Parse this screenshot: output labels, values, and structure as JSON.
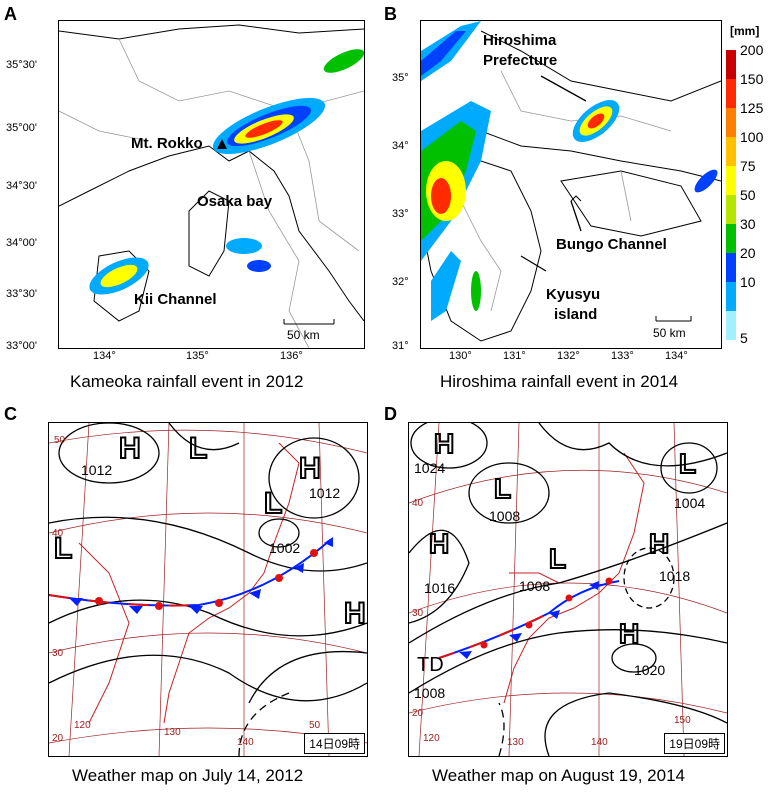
{
  "panels": {
    "A": {
      "letter": "A",
      "caption": "Kameoka rainfall event in 2012",
      "y_ticks": [
        "35°30'",
        "35°00'",
        "34°30'",
        "34°00'",
        "33°30'",
        "33°00'"
      ],
      "x_ticks": [
        "134°",
        "135°",
        "136°"
      ],
      "labels": {
        "rokko": "Mt. Rokko",
        "osaka": "Osaka bay",
        "kii": "Kii Channel"
      },
      "scale": "50 km"
    },
    "B": {
      "letter": "B",
      "caption": "Hiroshima rainfall event in 2014",
      "y_ticks": [
        "35°",
        "34°",
        "33°",
        "32°",
        "31°"
      ],
      "x_ticks": [
        "130°",
        "131°",
        "132°",
        "133°",
        "134°"
      ],
      "labels": {
        "hiroshima_1": "Hiroshima",
        "hiroshima_2": "Prefecture",
        "bungo": "Bungo Channel",
        "kyusyu_1": "Kyusyu",
        "kyusyu_2": "island"
      },
      "scale": "50 km"
    },
    "C": {
      "letter": "C",
      "caption": "Weather map on July 14, 2012",
      "stamp": "14日09時",
      "pressures": [
        "1012",
        "1012",
        "1002"
      ],
      "lat_labels": [
        "50",
        "40",
        "30",
        "20"
      ],
      "lon_labels": [
        "120",
        "130",
        "140",
        "50"
      ]
    },
    "D": {
      "letter": "D",
      "caption": "Weather map on August 19, 2014",
      "stamp": "19日09時",
      "pressures": [
        "1024",
        "1008",
        "1004",
        "1016",
        "1008",
        "1018",
        "1020",
        "1008"
      ],
      "td_label": "TD",
      "lat_labels": [
        "40",
        "30",
        "20"
      ],
      "lon_labels": [
        "120",
        "130",
        "140",
        "150"
      ]
    }
  },
  "colorbar": {
    "unit": "[mm]",
    "ticks": [
      "200",
      "150",
      "125",
      "100",
      "75",
      "50",
      "30",
      "20",
      "10",
      "5"
    ],
    "colors": [
      "#c80000",
      "#ff2a00",
      "#ff8000",
      "#ffc000",
      "#ffff00",
      "#b4e600",
      "#00c000",
      "#0040ff",
      "#00aaff",
      "#a0f0ff"
    ]
  }
}
